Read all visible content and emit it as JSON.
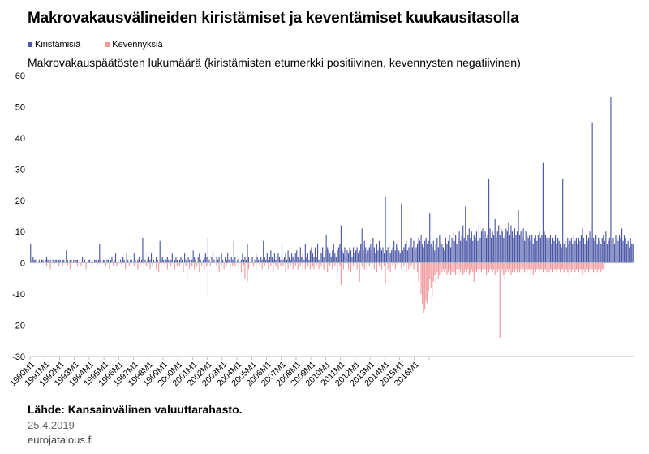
{
  "chart_data": {
    "type": "bar",
    "title": "Makrovakausvälineiden kiristämiset ja keventämiset kuukausitasolla",
    "subtitle": "Makrovakauspäätösten lukumäärä (kiristämisten etumerkki positiivinen, kevennysten negatiivinen)",
    "xlabel": "",
    "ylabel": "",
    "ylim": [
      -30,
      60
    ],
    "yticks": [
      -30,
      -20,
      -10,
      0,
      10,
      20,
      30,
      40,
      50,
      60
    ],
    "grid": false,
    "legend_position": "top-left",
    "x_tick_labels": [
      "1990M1",
      "1991M1",
      "1992M1",
      "1993M1",
      "1994M1",
      "1995M1",
      "1996M1",
      "1997M1",
      "1998M1",
      "1999M1",
      "2000M1",
      "2001M1",
      "2002M1",
      "2003M1",
      "2004M1",
      "2005M1",
      "2006M1",
      "2007M1",
      "2008M1",
      "2009M1",
      "2010M1",
      "2011M1",
      "2012M1",
      "2013M1",
      "2014M1",
      "2015M1",
      "2016M1"
    ],
    "series": [
      {
        "name": "Kiristämisiä",
        "color": "#4a56a6",
        "values": [
          6,
          1,
          2,
          1,
          1,
          0,
          0,
          1,
          0,
          1,
          1,
          0,
          1,
          2,
          1,
          0,
          1,
          0,
          1,
          0,
          1,
          1,
          0,
          1,
          1,
          0,
          1,
          1,
          0,
          4,
          1,
          0,
          1,
          1,
          0,
          1,
          0,
          1,
          1,
          0,
          1,
          0,
          2,
          0,
          1,
          0,
          0,
          1,
          1,
          0,
          1,
          0,
          1,
          1,
          0,
          1,
          6,
          1,
          0,
          1,
          1,
          0,
          1,
          1,
          0,
          1,
          2,
          0,
          1,
          3,
          0,
          1,
          0,
          1,
          0,
          2,
          1,
          0,
          3,
          1,
          0,
          1,
          1,
          0,
          3,
          1,
          0,
          1,
          2,
          0,
          1,
          8,
          2,
          1,
          0,
          1,
          2,
          1,
          3,
          0,
          1,
          0,
          2,
          1,
          0,
          7,
          1,
          2,
          1,
          0,
          1,
          2,
          1,
          0,
          1,
          3,
          0,
          1,
          2,
          1,
          0,
          1,
          2,
          1,
          0,
          3,
          1,
          0,
          2,
          1,
          0,
          1,
          4,
          2,
          1,
          0,
          2,
          3,
          1,
          0,
          1,
          2,
          3,
          2,
          8,
          1,
          0,
          2,
          4,
          1,
          0,
          2,
          1,
          2,
          0,
          3,
          1,
          0,
          2,
          1,
          3,
          1,
          0,
          2,
          1,
          7,
          2,
          0,
          1,
          2,
          0,
          1,
          3,
          1,
          2,
          1,
          6,
          2,
          0,
          1,
          2,
          0,
          1,
          3,
          2,
          1,
          0,
          2,
          1,
          7,
          2,
          1,
          3,
          1,
          2,
          4,
          2,
          1,
          3,
          1,
          2,
          3,
          2,
          1,
          6,
          1,
          2,
          3,
          1,
          4,
          2,
          1,
          3,
          2,
          1,
          3,
          4,
          2,
          1,
          5,
          2,
          3,
          1,
          6,
          2,
          3,
          1,
          4,
          5,
          3,
          2,
          5,
          2,
          6,
          1,
          4,
          3,
          5,
          2,
          4,
          9,
          5,
          4,
          3,
          2,
          4,
          6,
          3,
          2,
          4,
          5,
          6,
          12,
          4,
          3,
          5,
          2,
          4,
          3,
          5,
          4,
          2,
          5,
          3,
          4,
          5,
          3,
          4,
          6,
          11,
          4,
          7,
          5,
          3,
          4,
          5,
          6,
          4,
          8,
          5,
          3,
          6,
          4,
          7,
          5,
          4,
          5,
          3,
          21,
          4,
          5,
          6,
          3,
          4,
          5,
          7,
          4,
          6,
          5,
          4,
          3,
          19,
          4,
          5,
          6,
          7,
          4,
          5,
          6,
          8,
          5,
          7,
          4,
          5,
          6,
          8,
          7,
          9,
          6,
          5,
          7,
          8,
          6,
          7,
          16,
          6,
          5,
          7,
          4,
          6,
          8,
          5,
          9,
          7,
          6,
          5,
          4,
          8,
          6,
          7,
          9,
          5,
          8,
          10,
          7,
          9,
          6,
          8,
          10,
          7,
          9,
          12,
          8,
          18,
          7,
          9,
          11,
          8,
          10,
          7,
          9,
          8,
          10,
          7,
          13,
          8,
          10,
          11,
          9,
          10,
          8,
          9,
          27,
          11,
          8,
          10,
          9,
          14,
          8,
          10,
          12,
          9,
          11,
          10,
          8,
          9,
          11,
          10,
          13,
          9,
          12,
          10,
          8,
          11,
          9,
          10,
          17,
          9,
          10,
          8,
          11,
          7,
          10,
          9,
          8,
          9,
          7,
          9,
          6,
          8,
          9,
          7,
          9,
          10,
          8,
          9,
          32,
          10,
          9,
          8,
          7,
          8,
          9,
          6,
          8,
          7,
          9,
          6,
          8,
          7,
          6,
          5,
          27,
          6,
          7,
          5,
          8,
          6,
          7,
          8,
          6,
          9,
          7,
          8,
          6,
          8,
          7,
          9,
          11,
          8,
          6,
          9,
          7,
          8,
          10,
          8,
          45,
          8,
          7,
          9,
          6,
          8,
          7,
          6,
          8,
          9,
          7,
          10,
          6,
          7,
          8,
          53,
          7,
          8,
          6,
          9,
          8,
          7,
          9,
          8,
          11,
          7,
          9,
          8,
          6,
          7,
          5,
          8,
          6,
          6
        ]
      },
      {
        "name": "Kevennyksiä",
        "color": "#f0999c",
        "values": [
          0,
          0,
          0,
          0,
          0,
          0,
          0,
          0,
          0,
          0,
          0,
          0,
          0,
          -1,
          0,
          0,
          -2,
          0,
          0,
          -1,
          0,
          0,
          0,
          -1,
          0,
          0,
          -1,
          0,
          0,
          0,
          -1,
          0,
          -2,
          0,
          0,
          0,
          0,
          0,
          -1,
          0,
          0,
          -1,
          0,
          0,
          0,
          -2,
          0,
          0,
          0,
          0,
          -1,
          0,
          0,
          0,
          -1,
          0,
          0,
          -1,
          0,
          0,
          0,
          -1,
          0,
          0,
          -2,
          0,
          0,
          -1,
          0,
          0,
          -1,
          0,
          0,
          0,
          -1,
          0,
          0,
          -2,
          0,
          0,
          -1,
          0,
          0,
          0,
          -1,
          0,
          0,
          -2,
          0,
          -1,
          0,
          0,
          -3,
          0,
          -1,
          0,
          0,
          -2,
          0,
          -1,
          0,
          0,
          -2,
          0,
          -3,
          0,
          -1,
          0,
          0,
          -1,
          0,
          -2,
          0,
          0,
          -1,
          0,
          0,
          -2,
          0,
          -1,
          0,
          -1,
          0,
          0,
          -3,
          0,
          -1,
          -5,
          0,
          -2,
          0,
          -1,
          0,
          -2,
          0,
          -1,
          0,
          -3,
          0,
          -1,
          0,
          -2,
          0,
          -1,
          -11,
          0,
          -1,
          0,
          -2,
          0,
          0,
          -1,
          0,
          -3,
          0,
          -1,
          0,
          -2,
          0,
          -1,
          0,
          0,
          -2,
          0,
          -1,
          0,
          -1,
          0,
          0,
          -2,
          0,
          -3,
          0,
          -1,
          -5,
          0,
          -6,
          -2,
          0,
          -1,
          0,
          -1,
          0,
          -2,
          0,
          0,
          -1,
          0,
          -2,
          0,
          -1,
          0,
          0,
          -2,
          0,
          -1,
          0,
          -3,
          0,
          -1,
          0,
          -2,
          0,
          -1,
          0,
          -1,
          0,
          -3,
          0,
          -2,
          0,
          -1,
          0,
          -2,
          0,
          -1,
          0,
          -2,
          0,
          -1,
          0,
          -3,
          0,
          -2,
          0,
          -1,
          0,
          -2,
          0,
          -1,
          -2,
          0,
          -1,
          0,
          -2,
          0,
          -1,
          0,
          -2,
          0,
          0,
          -3,
          0,
          -1,
          0,
          -2,
          0,
          -1,
          0,
          -3,
          0,
          -1,
          -7,
          0,
          -2,
          0,
          -1,
          0,
          -2,
          0,
          -3,
          0,
          -1,
          0,
          0,
          -2,
          0,
          -6,
          0,
          -1,
          0,
          -2,
          0,
          -3,
          0,
          -1,
          0,
          -1,
          0,
          -2,
          0,
          -3,
          0,
          -1,
          0,
          -2,
          0,
          -1,
          -7,
          0,
          -2,
          0,
          -3,
          0,
          -1,
          0,
          -2,
          0,
          -1,
          0,
          0,
          -2,
          0,
          -1,
          0,
          -3,
          0,
          -2,
          0,
          -1,
          0,
          -2,
          -2,
          0,
          -3,
          -6,
          0,
          -10,
          -13,
          -16,
          -15,
          -12,
          -13,
          -9,
          -5,
          -8,
          -11,
          -6,
          -4,
          -7,
          -3,
          -5,
          -4,
          -2,
          -3,
          -2,
          -3,
          -2,
          -4,
          -3,
          -2,
          -4,
          -3,
          -2,
          -3,
          -4,
          -2,
          -3,
          -2,
          -3,
          -2,
          -4,
          -3,
          -2,
          -3,
          -2,
          -4,
          -3,
          -2,
          -3,
          -6,
          -2,
          -3,
          -2,
          -4,
          -2,
          -3,
          -2,
          -3,
          -2,
          -4,
          -2,
          -3,
          -2,
          -2,
          -3,
          -2,
          -4,
          -2,
          -3,
          -2,
          -24,
          -3,
          -2,
          -4,
          -5,
          -3,
          -2,
          -3,
          -2,
          -4,
          -3,
          -2,
          -3,
          -2,
          -3,
          -2,
          -3,
          -2,
          -4,
          -2,
          -3,
          -2,
          -3,
          -2,
          -2,
          -3,
          -2,
          -4,
          -2,
          -3,
          -2,
          -2,
          -3,
          -2,
          -2,
          -3,
          -2,
          -2,
          -3,
          -2,
          -3,
          -2,
          -2,
          -3,
          -2,
          -2,
          -3,
          -2,
          -2,
          -3,
          -2,
          -2,
          -3,
          -2,
          -2,
          -3,
          -4,
          -2,
          -3,
          -2,
          -2,
          -3,
          -2,
          -2,
          -3,
          -2,
          -2,
          -4,
          -2,
          -3,
          -2,
          -2,
          -3,
          -2,
          -2,
          -2,
          -3,
          -2,
          -2,
          -3,
          -2,
          -2,
          -3,
          -2,
          -2
        ]
      }
    ]
  },
  "legend": {
    "items": [
      {
        "label": "Kiristämisiä",
        "color": "#4a56a6"
      },
      {
        "label": "Kevennyksiä",
        "color": "#f0999c"
      }
    ]
  },
  "footer": {
    "source": "Lähde: Kansainvälinen valuuttarahasto.",
    "date": "25.4.2019",
    "site": "eurojatalous.fi"
  }
}
